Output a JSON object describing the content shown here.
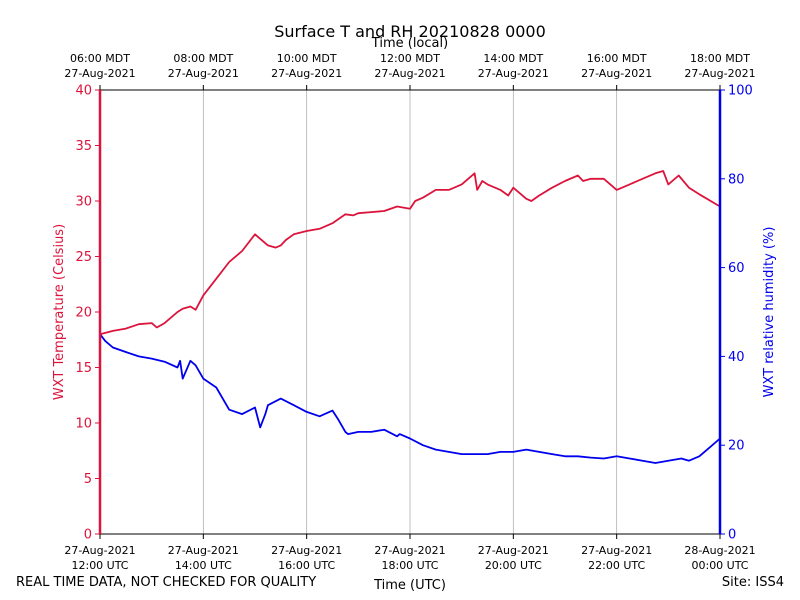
{
  "chart_data": {
    "type": "line",
    "title": "Surface T and RH 20210828 0000",
    "xlabel_bottom": "Time (UTC)",
    "xlabel_top": "Time (local)",
    "ylabel_left": "WXT Temperature (Celsius)",
    "ylabel_right": "WXT relative humidity (%)",
    "x_range_hours": [
      12,
      24
    ],
    "ylim_left": [
      0,
      40
    ],
    "ylim_right": [
      0,
      100
    ],
    "yticks_left": [
      "0",
      "5",
      "10",
      "15",
      "20",
      "25",
      "30",
      "35",
      "40"
    ],
    "yticks_right": [
      "0",
      "20",
      "40",
      "60",
      "80",
      "100"
    ],
    "xticks_bottom": [
      {
        "h": 12,
        "line1": "27-Aug-2021",
        "line2": "12:00 UTC"
      },
      {
        "h": 14,
        "line1": "27-Aug-2021",
        "line2": "14:00 UTC"
      },
      {
        "h": 16,
        "line1": "27-Aug-2021",
        "line2": "16:00 UTC"
      },
      {
        "h": 18,
        "line1": "27-Aug-2021",
        "line2": "18:00 UTC"
      },
      {
        "h": 20,
        "line1": "27-Aug-2021",
        "line2": "20:00 UTC"
      },
      {
        "h": 22,
        "line1": "27-Aug-2021",
        "line2": "22:00 UTC"
      },
      {
        "h": 24,
        "line1": "28-Aug-2021",
        "line2": "00:00 UTC"
      }
    ],
    "xticks_top": [
      {
        "h": 12,
        "line1": "06:00 MDT",
        "line2": "27-Aug-2021"
      },
      {
        "h": 14,
        "line1": "08:00 MDT",
        "line2": "27-Aug-2021"
      },
      {
        "h": 16,
        "line1": "10:00 MDT",
        "line2": "27-Aug-2021"
      },
      {
        "h": 18,
        "line1": "12:00 MDT",
        "line2": "27-Aug-2021"
      },
      {
        "h": 20,
        "line1": "14:00 MDT",
        "line2": "27-Aug-2021"
      },
      {
        "h": 22,
        "line1": "16:00 MDT",
        "line2": "27-Aug-2021"
      },
      {
        "h": 24,
        "line1": "18:00 MDT",
        "line2": "27-Aug-2021"
      }
    ],
    "grid": "vertical",
    "series": [
      {
        "name": "WXT Temperature",
        "axis": "left",
        "color": "#dc143c",
        "x": [
          12.0,
          12.25,
          12.5,
          12.75,
          13.0,
          13.1,
          13.25,
          13.5,
          13.6,
          13.75,
          13.85,
          14.0,
          14.25,
          14.5,
          14.75,
          15.0,
          15.25,
          15.4,
          15.5,
          15.6,
          15.75,
          16.0,
          16.25,
          16.5,
          16.75,
          16.9,
          17.0,
          17.25,
          17.5,
          17.75,
          18.0,
          18.1,
          18.25,
          18.5,
          18.75,
          19.0,
          19.25,
          19.3,
          19.4,
          19.5,
          19.75,
          19.9,
          20.0,
          20.25,
          20.35,
          20.5,
          20.75,
          21.0,
          21.25,
          21.35,
          21.5,
          21.75,
          22.0,
          22.25,
          22.5,
          22.75,
          22.9,
          23.0,
          23.2,
          23.4,
          23.6,
          24.0
        ],
        "values": [
          18.0,
          18.3,
          18.5,
          18.9,
          19.0,
          18.6,
          19.0,
          20.0,
          20.3,
          20.5,
          20.2,
          21.5,
          23.0,
          24.5,
          25.5,
          27.0,
          26.0,
          25.8,
          26.0,
          26.5,
          27.0,
          27.3,
          27.5,
          28.0,
          28.8,
          28.7,
          28.9,
          29.0,
          29.1,
          29.5,
          29.3,
          30.0,
          30.3,
          31.0,
          31.0,
          31.5,
          32.5,
          31.0,
          31.8,
          31.5,
          31.0,
          30.5,
          31.2,
          30.2,
          30.0,
          30.5,
          31.2,
          31.8,
          32.3,
          31.8,
          32.0,
          32.0,
          31.0,
          31.5,
          32.0,
          32.5,
          32.7,
          31.5,
          32.3,
          31.2,
          30.6,
          29.5
        ]
      },
      {
        "name": "WXT relative humidity",
        "axis": "right",
        "color": "#0000ee",
        "x": [
          12.0,
          12.1,
          12.25,
          12.5,
          12.75,
          13.0,
          13.25,
          13.5,
          13.55,
          13.6,
          13.75,
          13.85,
          14.0,
          14.25,
          14.5,
          14.75,
          15.0,
          15.1,
          15.2,
          15.25,
          15.5,
          15.75,
          16.0,
          16.25,
          16.5,
          16.6,
          16.75,
          16.8,
          17.0,
          17.25,
          17.5,
          17.75,
          17.8,
          18.0,
          18.25,
          18.5,
          18.75,
          19.0,
          19.25,
          19.5,
          19.75,
          20.0,
          20.25,
          20.5,
          20.75,
          21.0,
          21.25,
          21.5,
          21.75,
          22.0,
          22.25,
          22.5,
          22.75,
          23.0,
          23.25,
          23.4,
          23.6,
          23.8,
          24.0
        ],
        "values": [
          45.0,
          43.5,
          42.0,
          41.0,
          40.0,
          39.5,
          38.8,
          37.5,
          39.0,
          35.0,
          39.0,
          38.0,
          35.0,
          33.0,
          28.0,
          27.0,
          28.5,
          24.0,
          27.0,
          29.0,
          30.5,
          29.0,
          27.5,
          26.5,
          27.8,
          26.0,
          23.0,
          22.5,
          23.0,
          23.0,
          23.5,
          22.0,
          22.5,
          21.5,
          20.0,
          19.0,
          18.5,
          18.0,
          18.0,
          18.0,
          18.5,
          18.5,
          19.0,
          18.5,
          18.0,
          17.5,
          17.5,
          17.2,
          17.0,
          17.5,
          17.0,
          16.5,
          16.0,
          16.5,
          17.0,
          16.5,
          17.5,
          19.5,
          21.5
        ]
      }
    ],
    "footer_left": "REAL TIME DATA, NOT CHECKED FOR QUALITY",
    "footer_right": "Site: ISS4"
  }
}
